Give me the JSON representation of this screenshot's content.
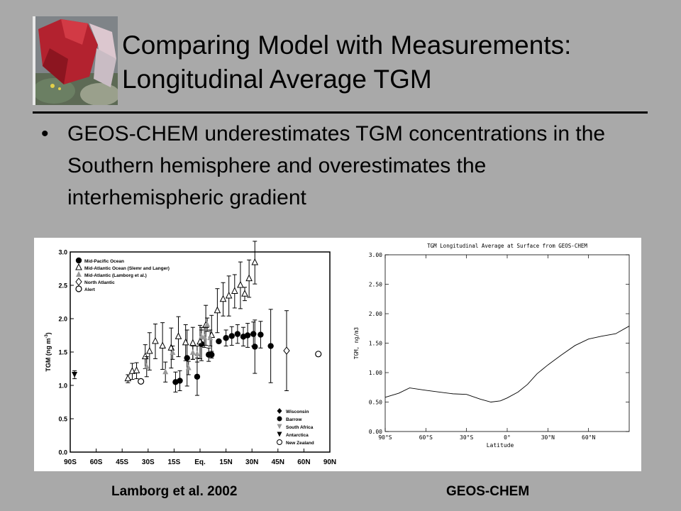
{
  "slide": {
    "title_line1": "Comparing Model with Measurements:",
    "title_line2": "Longitudinal Average TGM",
    "bullet_symbol": "•",
    "bullet_text": "GEOS-CHEM underestimates TGM concentrations in the Southern hemisphere and overestimates the interhemispheric gradient",
    "caption_left": "Lamborg et al. 2002",
    "caption_right": "GEOS-CHEM",
    "thumbnail_icon": "mineral-crystal-photo"
  },
  "chart_data": [
    {
      "type": "scatter",
      "title": "",
      "ylabel": "TGM (ng m⁻³)",
      "ylabel_parts": {
        "main": "TGM (ng m",
        "sup": "-3",
        "end": ")"
      },
      "xlabel": "",
      "ylim": [
        0.0,
        3.0
      ],
      "yticks": [
        "0.0",
        "0.5",
        "1.0",
        "1.5",
        "2.0",
        "2.5",
        "3.0"
      ],
      "xlim": [
        -90,
        90
      ],
      "xticks": [
        "90S",
        "60S",
        "45S",
        "30S",
        "15S",
        "Eq.",
        "15N",
        "30N",
        "45N",
        "60N",
        "90N"
      ],
      "legend_top": [
        "Mid-Pacific Ocean",
        "Mid-Atlantic Ocean (Slemr and Langer)",
        "Mid-Atlantic (Lamborg et al.)",
        "North Atlantic",
        "Alert"
      ],
      "legend_bottom": [
        "Wisconsin",
        "Barrow",
        "South Africa",
        "Antarctica",
        "New Zealand"
      ],
      "series": [
        {
          "name": "Mid-Pacific Ocean",
          "points": [
            [
              -17,
              1.05,
              0.15
            ],
            [
              -14,
              1.07,
              0.15
            ],
            [
              -9,
              1.41,
              0.42
            ],
            [
              -2,
              1.13,
              0.28
            ],
            [
              1,
              1.62,
              0.25
            ],
            [
              6,
              1.46,
              0.1
            ],
            [
              8,
              1.46,
              0.05
            ],
            [
              13,
              1.66,
              0.0
            ],
            [
              18,
              1.71,
              0.12
            ],
            [
              22,
              1.74,
              0.14
            ],
            [
              26,
              1.77,
              0.14
            ],
            [
              30,
              1.73,
              0.14
            ],
            [
              33,
              1.75,
              0.18
            ],
            [
              37,
              1.77,
              0.18
            ],
            [
              38,
              1.58,
              0.4
            ],
            [
              42,
              1.76,
              0.2
            ],
            [
              49,
              1.59,
              0.55
            ]
          ]
        },
        {
          "name": "Mid-Atlantic Ocean (Slemr and Langer)",
          "points": [
            [
              -50,
              1.1,
              0.06
            ],
            [
              -47,
              1.21,
              0.12
            ],
            [
              -44,
              1.22,
              0.12
            ],
            [
              -38,
              1.43,
              0.18
            ],
            [
              -35,
              1.51,
              0.28
            ],
            [
              -31,
              1.66,
              0.26
            ],
            [
              -26,
              1.59,
              0.35
            ],
            [
              -20,
              1.56,
              0.3
            ],
            [
              -15,
              1.73,
              0.3
            ],
            [
              -10,
              1.64,
              0.27
            ],
            [
              -5,
              1.63,
              0.24
            ],
            [
              0,
              1.65,
              0.25
            ],
            [
              4,
              1.9,
              0.3
            ],
            [
              8,
              1.75,
              0.3
            ],
            [
              12,
              2.12,
              0.33
            ],
            [
              16,
              2.29,
              0.25
            ],
            [
              20,
              2.34,
              0.3
            ],
            [
              24,
              2.41,
              0.25
            ],
            [
              28,
              2.5,
              0.35
            ],
            [
              31,
              2.37,
              0.1
            ],
            [
              34,
              2.6,
              0.28
            ],
            [
              38,
              2.84,
              0.32
            ]
          ]
        },
        {
          "name": "Mid-Atlantic (Lamborg et al.)",
          "points": [
            [
              -37,
              1.28,
              0.15
            ],
            [
              -24,
              1.2,
              0.15
            ],
            [
              -19,
              1.49,
              0.1
            ],
            [
              -8,
              1.26,
              0.1
            ],
            [
              -5,
              1.49,
              0.1
            ],
            [
              -2,
              1.47,
              0.12
            ],
            [
              1,
              1.73,
              0.1
            ],
            [
              3,
              1.72,
              0.15
            ],
            [
              5,
              1.91,
              0.1
            ],
            [
              7,
              1.71,
              0.12
            ]
          ]
        },
        {
          "name": "North Atlantic",
          "points": [
            [
              60,
              1.52,
              0.6
            ]
          ]
        },
        {
          "name": "Alert",
          "points": [
            [
              82,
              1.47,
              0.0
            ]
          ]
        },
        {
          "name": "Antarctica",
          "points": [
            [
              -87,
              1.16,
              0.06
            ]
          ]
        },
        {
          "name": "New Zealand",
          "points": [
            [
              -41,
              1.06,
              0.0
            ]
          ]
        }
      ]
    },
    {
      "type": "line",
      "title": "TGM Longitudinal Average at Surface from GEOS-CHEM",
      "xlabel": "Latitude",
      "ylabel": "TGM, ng/m3",
      "xlim": [
        -90,
        90
      ],
      "ylim": [
        0.0,
        3.0
      ],
      "xticks": [
        "90°S",
        "60°S",
        "30°S",
        "0°",
        "30°N",
        "60°N"
      ],
      "yticks": [
        "0.00",
        "0.50",
        "1.00",
        "1.50",
        "2.00",
        "2.50",
        "3.00"
      ],
      "series": [
        {
          "name": "",
          "x": [
            -90,
            -80,
            -72,
            -60,
            -50,
            -40,
            -30,
            -20,
            -12,
            -5,
            0,
            8,
            15,
            22,
            30,
            40,
            50,
            60,
            70,
            80,
            90
          ],
          "y": [
            0.58,
            0.65,
            0.74,
            0.7,
            0.67,
            0.64,
            0.63,
            0.55,
            0.5,
            0.52,
            0.57,
            0.67,
            0.8,
            0.98,
            1.13,
            1.3,
            1.46,
            1.57,
            1.62,
            1.66,
            1.79
          ]
        }
      ]
    }
  ]
}
